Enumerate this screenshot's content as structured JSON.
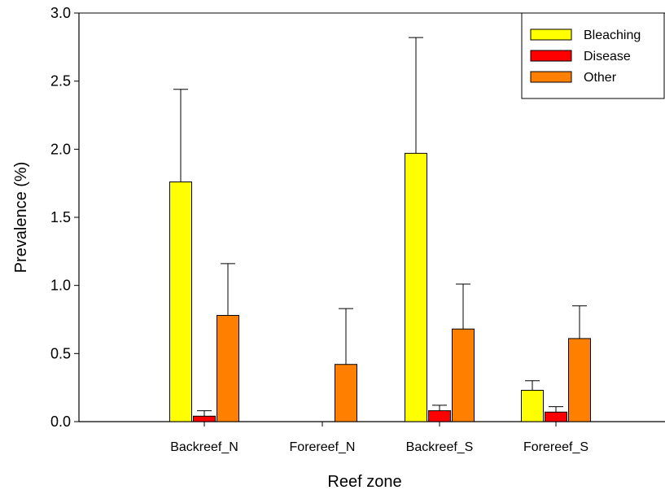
{
  "chart_data": {
    "type": "bar",
    "title": "",
    "xlabel": "Reef zone",
    "ylabel": "Prevalence (%)",
    "ylim": [
      0,
      3.0
    ],
    "yticks": [
      "0.0",
      "0.5",
      "1.0",
      "1.5",
      "2.0",
      "2.5",
      "3.0"
    ],
    "categories": [
      "Backreef_N",
      "Forereef_N",
      "Backreef_S",
      "Forereef_S"
    ],
    "series": [
      {
        "name": "Bleaching",
        "color": "#ffff00",
        "values": [
          1.76,
          0.0,
          1.97,
          0.23
        ],
        "errors": [
          0.68,
          0.0,
          0.85,
          0.07
        ]
      },
      {
        "name": "Disease",
        "color": "#ff0000",
        "values": [
          0.04,
          0.0,
          0.08,
          0.07
        ],
        "errors": [
          0.04,
          0.0,
          0.04,
          0.04
        ]
      },
      {
        "name": "Other",
        "color": "#ff8000",
        "values": [
          0.78,
          0.42,
          0.68,
          0.61
        ],
        "errors": [
          0.38,
          0.41,
          0.33,
          0.24
        ]
      }
    ],
    "legend_position": "top-right",
    "grid": false
  }
}
